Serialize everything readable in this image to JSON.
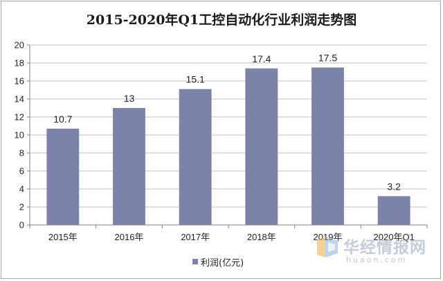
{
  "chart_data": {
    "type": "bar",
    "title": "2015-2020年Q1工控自动化行业利润走势图",
    "categories": [
      "2015年",
      "2016年",
      "2017年",
      "2018年",
      "2019年",
      "2020年Q1"
    ],
    "series": [
      {
        "name": "利润(亿元)",
        "values": [
          10.7,
          13,
          15.1,
          17.4,
          17.5,
          3.2
        ]
      }
    ],
    "data_labels": [
      "10.7",
      "13",
      "15.1",
      "17.4",
      "17.5",
      "3.2"
    ],
    "ylim": [
      0,
      20
    ],
    "yticks": [
      0,
      2,
      4,
      6,
      8,
      10,
      12,
      14,
      16,
      18,
      20
    ],
    "grid": true,
    "legend_position": "bottom",
    "bar_color": "#7b84a8"
  },
  "watermark": {
    "cn": "华经情报网",
    "en": "huaon.com"
  }
}
